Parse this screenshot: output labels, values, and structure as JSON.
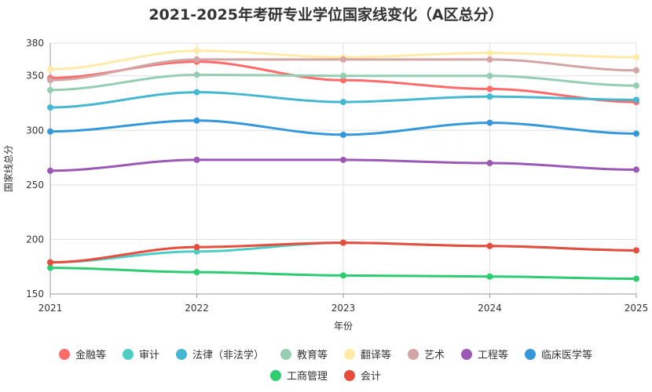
{
  "chart_data": {
    "type": "line",
    "title": "2021-2025年考研专业学位国家线变化（A区总分）",
    "xlabel": "年份",
    "ylabel": "国家线总分",
    "x": [
      "2021",
      "2022",
      "2023",
      "2024",
      "2025"
    ],
    "y_ticks": [
      150,
      200,
      250,
      300,
      350,
      380
    ],
    "ylim": [
      150,
      380
    ],
    "grid": true,
    "legend_position": "bottom",
    "series": [
      {
        "name": "金融等",
        "color": "#ff6b6b",
        "values": [
          348,
          363,
          346,
          338,
          326
        ]
      },
      {
        "name": "审计",
        "color": "#4ecdc4",
        "values": [
          179,
          189,
          197,
          194,
          190
        ]
      },
      {
        "name": "法律（非法学）",
        "color": "#45b7d1",
        "values": [
          321,
          335,
          326,
          331,
          328
        ]
      },
      {
        "name": "教育等",
        "color": "#96ceb4",
        "values": [
          337,
          351,
          350,
          350,
          341
        ]
      },
      {
        "name": "翻译等",
        "color": "#ffeaa7",
        "values": [
          356,
          373,
          367,
          371,
          367
        ]
      },
      {
        "name": "艺术",
        "color": "#d4a5a5",
        "values": [
          346,
          365,
          365,
          365,
          355
        ]
      },
      {
        "name": "工程等",
        "color": "#9b59b6",
        "values": [
          263,
          273,
          273,
          270,
          264
        ]
      },
      {
        "name": "临床医学等",
        "color": "#3498db",
        "values": [
          299,
          309,
          296,
          307,
          297
        ]
      },
      {
        "name": "工商管理",
        "color": "#2ecc71",
        "values": [
          174,
          170,
          167,
          166,
          164
        ]
      },
      {
        "name": "会计",
        "color": "#e74c3c",
        "values": [
          179,
          193,
          197,
          194,
          190
        ]
      }
    ]
  }
}
